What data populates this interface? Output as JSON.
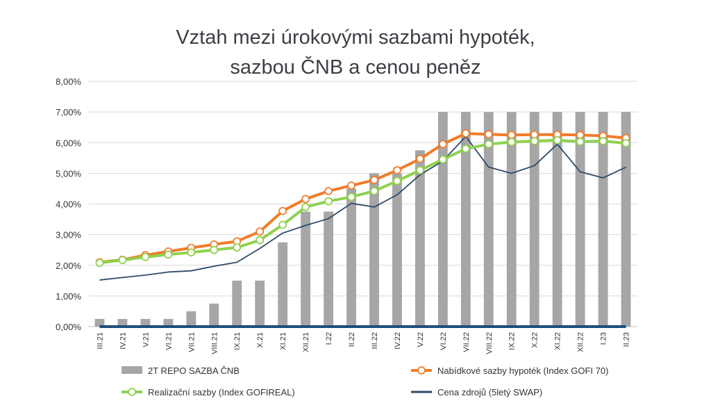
{
  "chart_data": {
    "type": "bar",
    "title_lines": [
      "Vztah mezi úrokovými sazbami hypoték,",
      "sazbou ČNB a cenou peněz"
    ],
    "y_ticks": [
      "0,00%",
      "1,00%",
      "2,00%",
      "3,00%",
      "4,00%",
      "5,00%",
      "6,00%",
      "7,00%",
      "8,00%"
    ],
    "ylim": [
      0,
      8
    ],
    "grid": true,
    "legend_position": "bottom",
    "categories": [
      "III.21",
      "IV.21",
      "V.21",
      "VI.21",
      "VII.21",
      "VIII.21",
      "IX.21",
      "X.21",
      "XI.21",
      "XII.21",
      "I.22",
      "II.22",
      "III.22",
      "IV.22",
      "V.22",
      "VI.22",
      "VII.22",
      "VIII.22",
      "IX.22",
      "X.22",
      "XI.22",
      "XII.22",
      "I.23",
      "II.23"
    ],
    "series": [
      {
        "name": "2T REPO SAZBA ČNB",
        "kind": "bar",
        "color": "#a6a6a6",
        "values": [
          0.25,
          0.25,
          0.25,
          0.25,
          0.5,
          0.75,
          1.5,
          1.5,
          2.75,
          3.75,
          3.75,
          4.5,
          5.0,
          5.0,
          5.75,
          7.0,
          7.0,
          7.0,
          7.0,
          7.0,
          7.0,
          7.0,
          7.0,
          7.0
        ]
      },
      {
        "name": "Nabídkové sazby hypoték (Index GOFI 70)",
        "kind": "line-markers",
        "color": "#f07c2a",
        "values": [
          2.1,
          2.18,
          2.33,
          2.45,
          2.57,
          2.68,
          2.78,
          3.1,
          3.77,
          4.16,
          4.42,
          4.6,
          4.78,
          5.1,
          5.47,
          5.95,
          6.3,
          6.27,
          6.25,
          6.26,
          6.26,
          6.25,
          6.22,
          6.15
        ]
      },
      {
        "name": "Realizační sazby (Index GOFIREAL)",
        "kind": "line-markers",
        "color": "#8fd14f",
        "values": [
          2.08,
          2.17,
          2.27,
          2.35,
          2.42,
          2.5,
          2.58,
          2.82,
          3.32,
          3.9,
          4.09,
          4.23,
          4.42,
          4.75,
          5.1,
          5.45,
          5.8,
          5.95,
          6.02,
          6.05,
          6.08,
          6.03,
          6.05,
          5.98
        ]
      },
      {
        "name": "Cena zdrojů (5letý SWAP)",
        "kind": "line",
        "color": "#2e4a6b",
        "values": [
          1.52,
          1.6,
          1.68,
          1.78,
          1.82,
          1.97,
          2.1,
          2.55,
          3.05,
          3.3,
          3.52,
          4.02,
          3.9,
          4.3,
          4.95,
          5.4,
          6.2,
          5.2,
          5.0,
          5.25,
          5.95,
          5.05,
          4.85,
          5.2
        ]
      },
      {
        "name": "",
        "kind": "flat-line",
        "color": "#1f4e79",
        "values": [
          0,
          0,
          0,
          0,
          0,
          0,
          0,
          0,
          0,
          0,
          0,
          0,
          0,
          0,
          0,
          0,
          0,
          0,
          0,
          0,
          0,
          0,
          0,
          0
        ]
      }
    ]
  }
}
